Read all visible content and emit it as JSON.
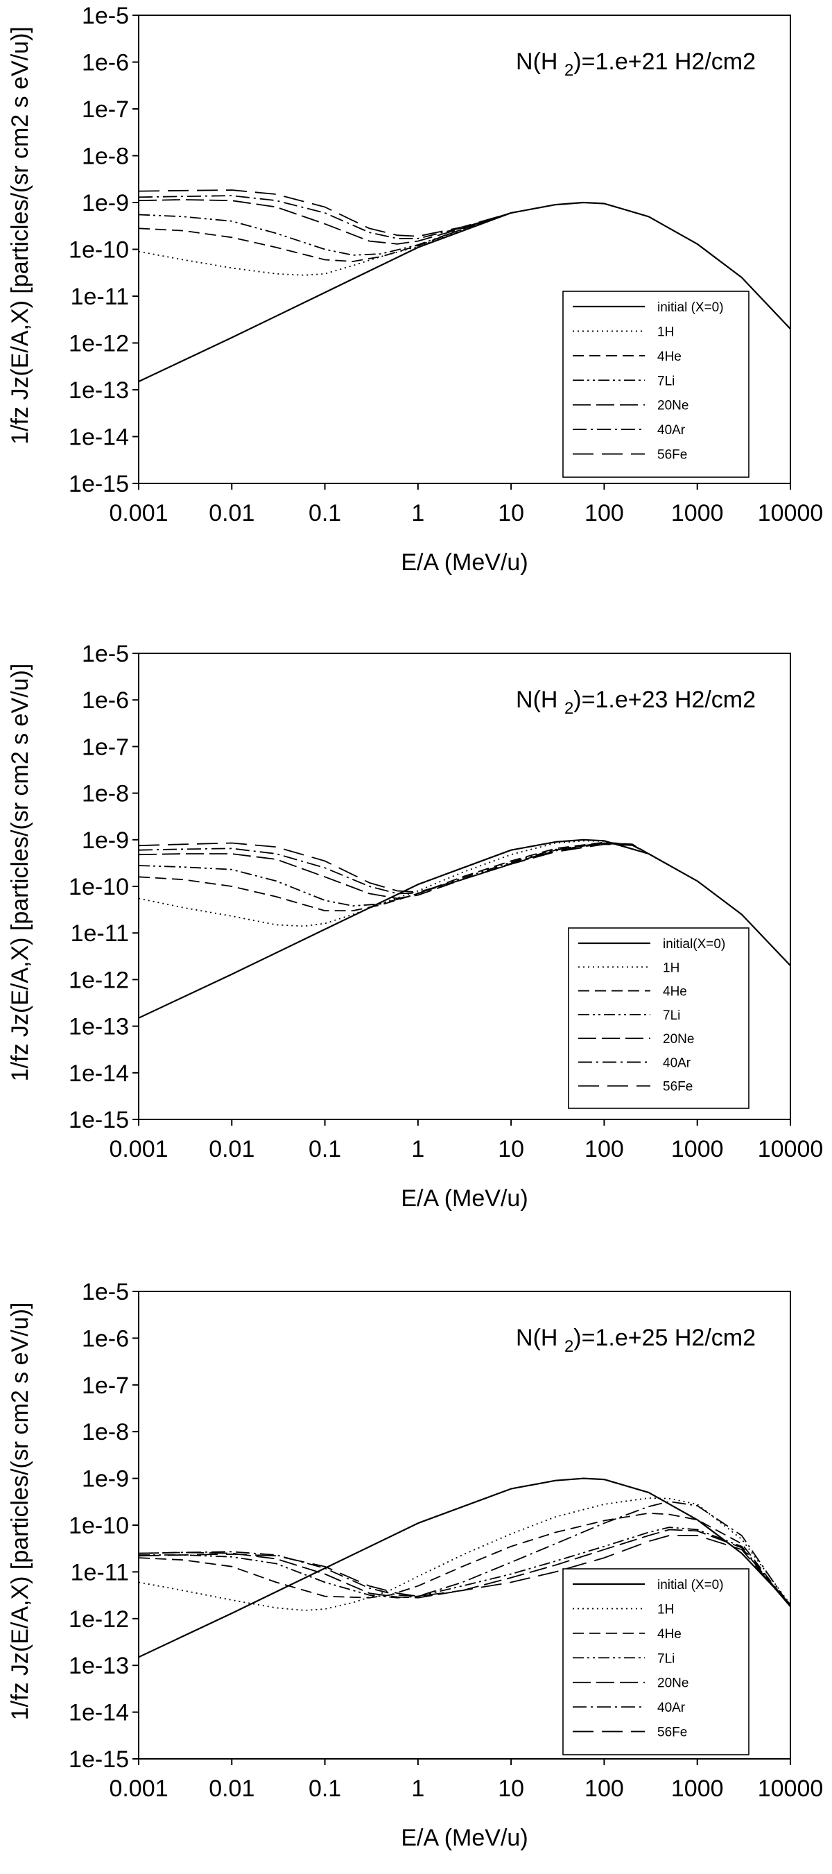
{
  "chart_data": [
    {
      "type": "line",
      "annotation": {
        "prefix": "N(H",
        "sub": "2",
        "suffix": ")=1.e+21 H2/cm2"
      },
      "xlabel": "E/A (MeV/u)",
      "ylabel": "1/fz Jz(E/A,X) [particles/(sr cm2 s eV/u)]",
      "x_scale": "log",
      "y_scale": "log",
      "xlim": [
        0.001,
        10000
      ],
      "ylim": [
        1e-15,
        1e-05
      ],
      "x_ticks": [
        "0.001",
        "0.01",
        "0.1",
        "1",
        "10",
        "100",
        "1000",
        "10000"
      ],
      "y_ticks": [
        "1e-5",
        "1e-6",
        "1e-7",
        "1e-8",
        "1e-9",
        "1e-10",
        "1e-11",
        "1e-12",
        "1e-13",
        "1e-14",
        "1e-15"
      ],
      "legend_position": "lower-right",
      "series": [
        {
          "name": "initial (X=0)",
          "style": "solid",
          "x": [
            0.001,
            0.01,
            0.1,
            1,
            10,
            30,
            60,
            100,
            300,
            1000,
            3000,
            10000
          ],
          "y": [
            1.5e-13,
            1.3e-12,
            1.2e-11,
            1.1e-10,
            6e-10,
            9e-10,
            1e-09,
            9.5e-10,
            5e-10,
            1.3e-10,
            2.5e-11,
            2e-12
          ]
        },
        {
          "name": "1H",
          "style": "dotted",
          "x": [
            0.001,
            0.003,
            0.01,
            0.03,
            0.06,
            0.1,
            0.2,
            0.4,
            1,
            3,
            10
          ],
          "y": [
            9e-11,
            6e-11,
            4e-11,
            3e-11,
            2.8e-11,
            3e-11,
            4.5e-11,
            7e-11,
            1.15e-10,
            2.6e-10,
            6e-10
          ]
        },
        {
          "name": "4He",
          "style": "dash",
          "x": [
            0.001,
            0.003,
            0.01,
            0.03,
            0.1,
            0.2,
            0.4,
            1,
            3,
            10
          ],
          "y": [
            2.8e-10,
            2.5e-10,
            1.8e-10,
            1.1e-10,
            6e-11,
            5.5e-11,
            7e-11,
            1.2e-10,
            2.7e-10,
            6e-10
          ]
        },
        {
          "name": "7Li",
          "style": "dashdotdot",
          "x": [
            0.001,
            0.003,
            0.01,
            0.03,
            0.1,
            0.2,
            0.4,
            1,
            3,
            10
          ],
          "y": [
            5.5e-10,
            5e-10,
            4e-10,
            2.2e-10,
            1e-10,
            7.5e-11,
            8e-11,
            1.25e-10,
            2.7e-10,
            6e-10
          ]
        },
        {
          "name": "20Ne",
          "style": "longdash",
          "x": [
            0.001,
            0.003,
            0.01,
            0.03,
            0.1,
            0.3,
            0.6,
            1,
            3,
            10
          ],
          "y": [
            1.1e-09,
            1.15e-09,
            1.1e-09,
            8e-10,
            3.5e-10,
            1.5e-10,
            1.3e-10,
            1.5e-10,
            2.8e-10,
            6e-10
          ]
        },
        {
          "name": "40Ar",
          "style": "dashdot",
          "x": [
            0.001,
            0.003,
            0.01,
            0.03,
            0.1,
            0.3,
            0.6,
            1,
            3,
            10
          ],
          "y": [
            1.3e-09,
            1.35e-09,
            1.4e-09,
            1.1e-09,
            6e-10,
            2.3e-10,
            1.7e-10,
            1.7e-10,
            2.9e-10,
            6e-10
          ]
        },
        {
          "name": "56Fe",
          "style": "longdashgap",
          "x": [
            0.001,
            0.003,
            0.01,
            0.03,
            0.1,
            0.3,
            0.6,
            1,
            3,
            10
          ],
          "y": [
            1.75e-09,
            1.8e-09,
            1.85e-09,
            1.5e-09,
            8e-10,
            2.8e-10,
            2e-10,
            1.9e-10,
            3e-10,
            6e-10
          ]
        }
      ]
    },
    {
      "type": "line",
      "annotation": {
        "prefix": "N(H",
        "sub": "2",
        "suffix": ")=1.e+23 H2/cm2"
      },
      "xlabel": "E/A (MeV/u)",
      "ylabel": "1/fz Jz(E/A,X) [particles/(sr cm2 s eV/u)]",
      "x_scale": "log",
      "y_scale": "log",
      "xlim": [
        0.001,
        10000
      ],
      "ylim": [
        1e-15,
        1e-05
      ],
      "x_ticks": [
        "0.001",
        "0.01",
        "0.1",
        "1",
        "10",
        "100",
        "1000",
        "10000"
      ],
      "y_ticks": [
        "1e-5",
        "1e-6",
        "1e-7",
        "1e-8",
        "1e-9",
        "1e-10",
        "1e-11",
        "1e-12",
        "1e-13",
        "1e-14",
        "1e-15"
      ],
      "legend_position": "lower-right",
      "series": [
        {
          "name": "initial(X=0)",
          "style": "solid",
          "x": [
            0.001,
            0.01,
            0.1,
            1,
            10,
            30,
            60,
            100,
            300,
            1000,
            3000,
            10000
          ],
          "y": [
            1.5e-13,
            1.3e-12,
            1.2e-11,
            1.1e-10,
            6e-10,
            9e-10,
            1e-09,
            9.5e-10,
            5e-10,
            1.3e-10,
            2.5e-11,
            2e-12
          ]
        },
        {
          "name": "1H",
          "style": "dotted",
          "x": [
            0.001,
            0.003,
            0.01,
            0.03,
            0.06,
            0.1,
            0.2,
            0.5,
            1,
            3,
            10,
            30,
            60,
            100,
            300
          ],
          "y": [
            5.5e-11,
            3.5e-11,
            2.3e-11,
            1.5e-11,
            1.4e-11,
            1.6e-11,
            2.5e-11,
            5e-11,
            8e-11,
            2e-10,
            4.8e-10,
            8.5e-10,
            9.5e-10,
            9.3e-10,
            5e-10
          ]
        },
        {
          "name": "4He",
          "style": "dash",
          "x": [
            0.001,
            0.003,
            0.01,
            0.03,
            0.1,
            0.2,
            0.4,
            1,
            3,
            10,
            30,
            100,
            200,
            300
          ],
          "y": [
            1.6e-10,
            1.4e-10,
            1e-10,
            6e-11,
            3e-11,
            3e-11,
            4e-11,
            7e-11,
            1.6e-10,
            3.5e-10,
            6.5e-10,
            8.8e-10,
            8e-10,
            5e-10
          ]
        },
        {
          "name": "7Li",
          "style": "dashdotdot",
          "x": [
            0.001,
            0.003,
            0.01,
            0.03,
            0.1,
            0.2,
            0.4,
            1,
            3,
            10,
            30,
            100,
            200,
            300
          ],
          "y": [
            2.8e-10,
            2.6e-10,
            2.3e-10,
            1.3e-10,
            5e-11,
            3.8e-11,
            4.2e-11,
            7e-11,
            1.5e-10,
            3.3e-10,
            6.2e-10,
            8.6e-10,
            7.8e-10,
            5e-10
          ]
        },
        {
          "name": "20Ne",
          "style": "longdash",
          "x": [
            0.001,
            0.003,
            0.01,
            0.03,
            0.1,
            0.3,
            0.6,
            1,
            3,
            10,
            30,
            100,
            200,
            300
          ],
          "y": [
            4.8e-10,
            5e-10,
            5e-10,
            3.8e-10,
            1.6e-10,
            7e-11,
            5.5e-11,
            6.5e-11,
            1.4e-10,
            3.1e-10,
            6e-10,
            8.5e-10,
            8e-10,
            5e-10
          ]
        },
        {
          "name": "40Ar",
          "style": "dashdot",
          "x": [
            0.001,
            0.003,
            0.01,
            0.03,
            0.1,
            0.3,
            0.6,
            1,
            3,
            10,
            30,
            100,
            200,
            300
          ],
          "y": [
            6e-10,
            6.3e-10,
            6.5e-10,
            5e-10,
            2.5e-10,
            1e-10,
            7e-11,
            7.2e-11,
            1.4e-10,
            3e-10,
            5.8e-10,
            8.3e-10,
            7.8e-10,
            5e-10
          ]
        },
        {
          "name": "56Fe",
          "style": "longdashgap",
          "x": [
            0.001,
            0.003,
            0.01,
            0.03,
            0.1,
            0.3,
            0.6,
            1,
            3,
            10,
            30,
            100,
            200,
            300
          ],
          "y": [
            7.5e-10,
            8e-10,
            8.5e-10,
            7e-10,
            3.5e-10,
            1.2e-10,
            8e-11,
            7.5e-11,
            1.4e-10,
            3e-10,
            5.5e-10,
            8e-10,
            7.6e-10,
            5e-10
          ]
        }
      ]
    },
    {
      "type": "line",
      "annotation": {
        "prefix": "N(H",
        "sub": "2",
        "suffix": ")=1.e+25 H2/cm2"
      },
      "xlabel": "E/A (MeV/u)",
      "ylabel": "1/fz Jz(E/A,X) [particles/(sr cm2 s eV/u)]",
      "x_scale": "log",
      "y_scale": "log",
      "xlim": [
        0.001,
        10000
      ],
      "ylim": [
        1e-15,
        1e-05
      ],
      "x_ticks": [
        "0.001",
        "0.01",
        "0.1",
        "1",
        "10",
        "100",
        "1000",
        "10000"
      ],
      "y_ticks": [
        "1e-5",
        "1e-6",
        "1e-7",
        "1e-8",
        "1e-9",
        "1e-10",
        "1e-11",
        "1e-12",
        "1e-13",
        "1e-14",
        "1e-15"
      ],
      "legend_position": "lower-right",
      "series": [
        {
          "name": "initial (X=0)",
          "style": "solid",
          "x": [
            0.001,
            0.01,
            0.1,
            1,
            10,
            30,
            60,
            100,
            300,
            1000,
            3000,
            10000
          ],
          "y": [
            1.5e-13,
            1.3e-12,
            1.2e-11,
            1.1e-10,
            6e-10,
            9e-10,
            1e-09,
            9.5e-10,
            5e-10,
            1.3e-10,
            2.5e-11,
            2e-12
          ]
        },
        {
          "name": "1H",
          "style": "dotted",
          "x": [
            0.001,
            0.003,
            0.01,
            0.03,
            0.06,
            0.1,
            0.2,
            0.5,
            1,
            3,
            10,
            30,
            100,
            300,
            500,
            1000,
            3000,
            10000
          ],
          "y": [
            6e-12,
            4e-12,
            2.5e-12,
            1.7e-12,
            1.5e-12,
            1.6e-12,
            2.2e-12,
            4e-12,
            8e-12,
            2.3e-11,
            6.5e-11,
            1.5e-10,
            2.8e-10,
            3.8e-10,
            3.7e-10,
            2.8e-10,
            5e-11,
            2e-12
          ]
        },
        {
          "name": "4He",
          "style": "dash",
          "x": [
            0.001,
            0.003,
            0.01,
            0.03,
            0.1,
            0.3,
            0.5,
            1,
            3,
            10,
            30,
            100,
            300,
            500,
            1000,
            3000,
            10000
          ],
          "y": [
            2e-11,
            1.8e-11,
            1.3e-11,
            6e-12,
            3e-12,
            2.8e-12,
            3.2e-12,
            5e-12,
            1.3e-11,
            3.5e-11,
            7e-11,
            1.25e-10,
            1.8e-10,
            1.7e-10,
            1.3e-10,
            4e-11,
            1.8e-12
          ]
        },
        {
          "name": "7Li",
          "style": "dashdotdot",
          "x": [
            0.001,
            0.003,
            0.01,
            0.03,
            0.1,
            0.3,
            0.6,
            1,
            3,
            10,
            30,
            100,
            300,
            500,
            1000,
            3000,
            10000
          ],
          "y": [
            2.3e-11,
            2.3e-11,
            2.1e-11,
            1.5e-11,
            6e-12,
            3.2e-12,
            2.8e-12,
            3e-12,
            5e-12,
            9e-12,
            1.7e-11,
            3.5e-11,
            7e-11,
            9e-11,
            8e-11,
            3.5e-11,
            1.8e-12
          ]
        },
        {
          "name": "20Ne",
          "style": "longdash",
          "x": [
            0.001,
            0.003,
            0.01,
            0.03,
            0.1,
            0.3,
            0.6,
            1,
            3,
            10,
            30,
            100,
            300,
            500,
            1000,
            3000,
            10000
          ],
          "y": [
            2.5e-11,
            2.6e-11,
            2.5e-11,
            1.9e-11,
            9e-12,
            3.5e-12,
            2.9e-12,
            2.8e-12,
            4e-12,
            7.5e-12,
            1.4e-11,
            3e-11,
            6e-11,
            8e-11,
            7.5e-11,
            3.3e-11,
            1.8e-12
          ]
        },
        {
          "name": "40Ar",
          "style": "dashdot",
          "x": [
            0.001,
            0.003,
            0.01,
            0.03,
            0.1,
            0.3,
            0.6,
            1,
            3,
            10,
            30,
            100,
            300,
            500,
            1000,
            3000,
            10000
          ],
          "y": [
            2.5e-11,
            2.6e-11,
            2.7e-11,
            2.3e-11,
            1.2e-11,
            4.5e-12,
            3.2e-12,
            3e-12,
            6e-12,
            1.6e-11,
            4e-11,
            1.1e-10,
            2.5e-10,
            3.2e-10,
            2.6e-10,
            6e-11,
            1.8e-12
          ]
        },
        {
          "name": "56Fe",
          "style": "longdashgap",
          "x": [
            0.001,
            0.003,
            0.01,
            0.03,
            0.1,
            0.3,
            0.6,
            1,
            3,
            10,
            30,
            100,
            300,
            500,
            1000,
            3000,
            10000
          ],
          "y": [
            2.2e-11,
            2.3e-11,
            2.4e-11,
            2.2e-11,
            1.3e-11,
            5e-12,
            3.5e-12,
            3e-12,
            4e-12,
            6e-12,
            1e-11,
            2e-11,
            4.5e-11,
            6e-11,
            6e-11,
            3e-11,
            1.8e-12
          ]
        }
      ]
    }
  ]
}
